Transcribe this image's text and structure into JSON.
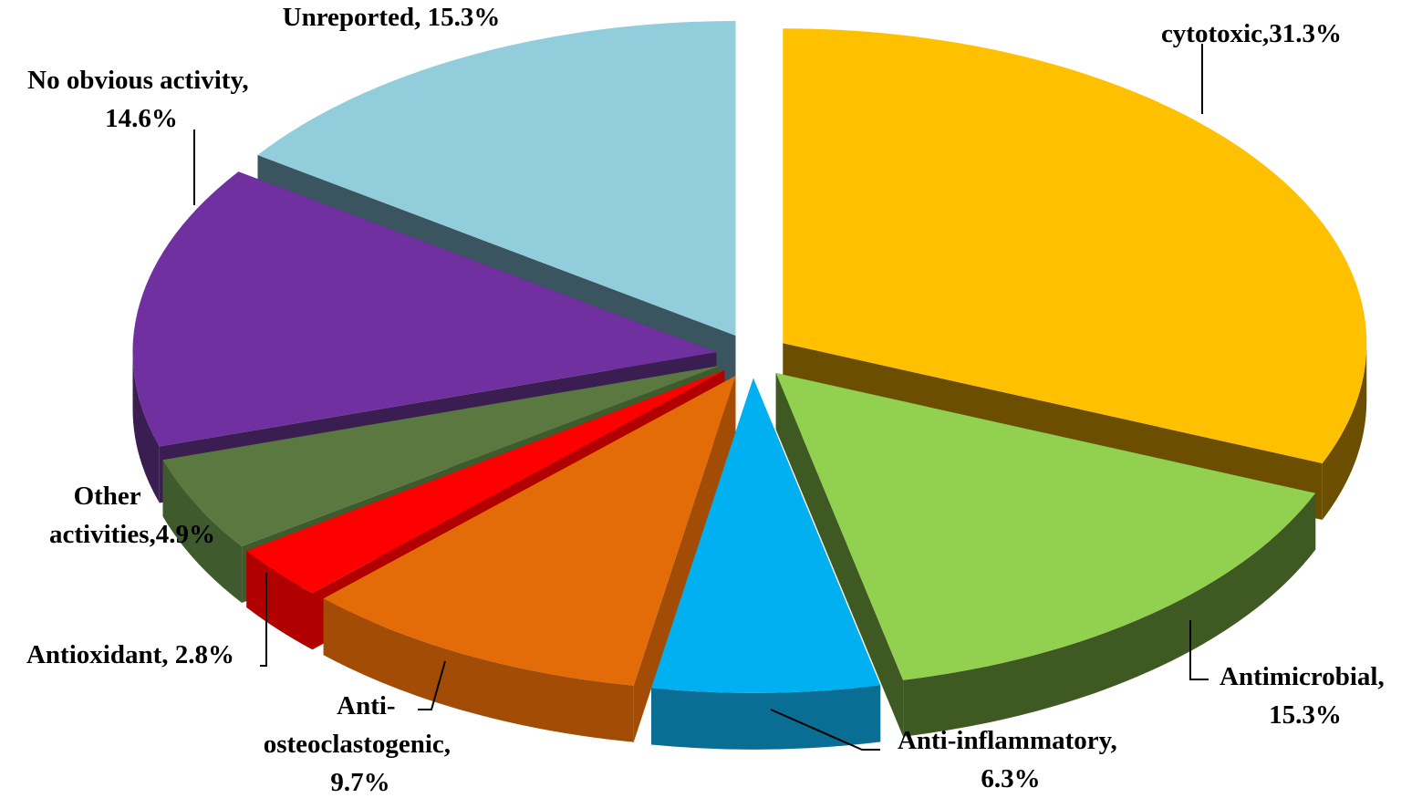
{
  "chart_data": {
    "type": "pie",
    "title": "",
    "style": "3d-exploded",
    "legend": "none",
    "series": [
      {
        "values": [
          {
            "label": "cytotoxic",
            "value": 31.3,
            "label_text": "cytotoxic,31.3%",
            "color": "#FFC000",
            "side_color": "#6B4E00"
          },
          {
            "label": "Antimicrobial",
            "value": 15.3,
            "label_text": "Antimicrobial, 15.3%",
            "color": "#92D050",
            "side_color": "#3E5A22"
          },
          {
            "label": "Anti-inflammatory",
            "value": 6.3,
            "label_text": "Anti-inflammatory, 6.3%",
            "color": "#00B0F0",
            "side_color": "#0A6D93"
          },
          {
            "label": "Anti-osteoclastogenic",
            "value": 9.7,
            "label_text": "Anti- osteoclastogenic, 9.7%",
            "color": "#E36C09",
            "side_color": "#A24C05"
          },
          {
            "label": "Antioxidant",
            "value": 2.8,
            "label_text": "Antioxidant, 2.8%",
            "color": "#FF0000",
            "side_color": "#B00000"
          },
          {
            "label": "Other activities",
            "value": 4.9,
            "label_text": "Other activities,4.9%",
            "color": "#5A7840",
            "side_color": "#3F5A2C"
          },
          {
            "label": "No obvious activity",
            "value": 14.6,
            "label_text": "No obvious activity, 14.6%",
            "color": "#7030A0",
            "side_color": "#3A1E52"
          },
          {
            "label": "Unreported",
            "value": 15.3,
            "label_text": "Unreported, 15.3%",
            "color": "#92CDDC",
            "side_color": "#3A5560"
          }
        ]
      }
    ],
    "labels": {
      "cytotoxic": [
        "cytotoxic,31.3%"
      ],
      "antimicrobial": [
        "Antimicrobial,",
        "15.3%"
      ],
      "anti_inflammatory": [
        "Anti-inflammatory,",
        "6.3%"
      ],
      "anti_osteoclastogenic": [
        "Anti-",
        "osteoclastogenic,",
        "9.7%"
      ],
      "antioxidant": [
        "Antioxidant, 2.8%"
      ],
      "other_activities": [
        "Other",
        "activities,4.9%"
      ],
      "no_obvious_activity": [
        "No obvious activity,",
        "14.6%"
      ],
      "unreported": [
        "Unreported, 15.3%"
      ]
    }
  }
}
